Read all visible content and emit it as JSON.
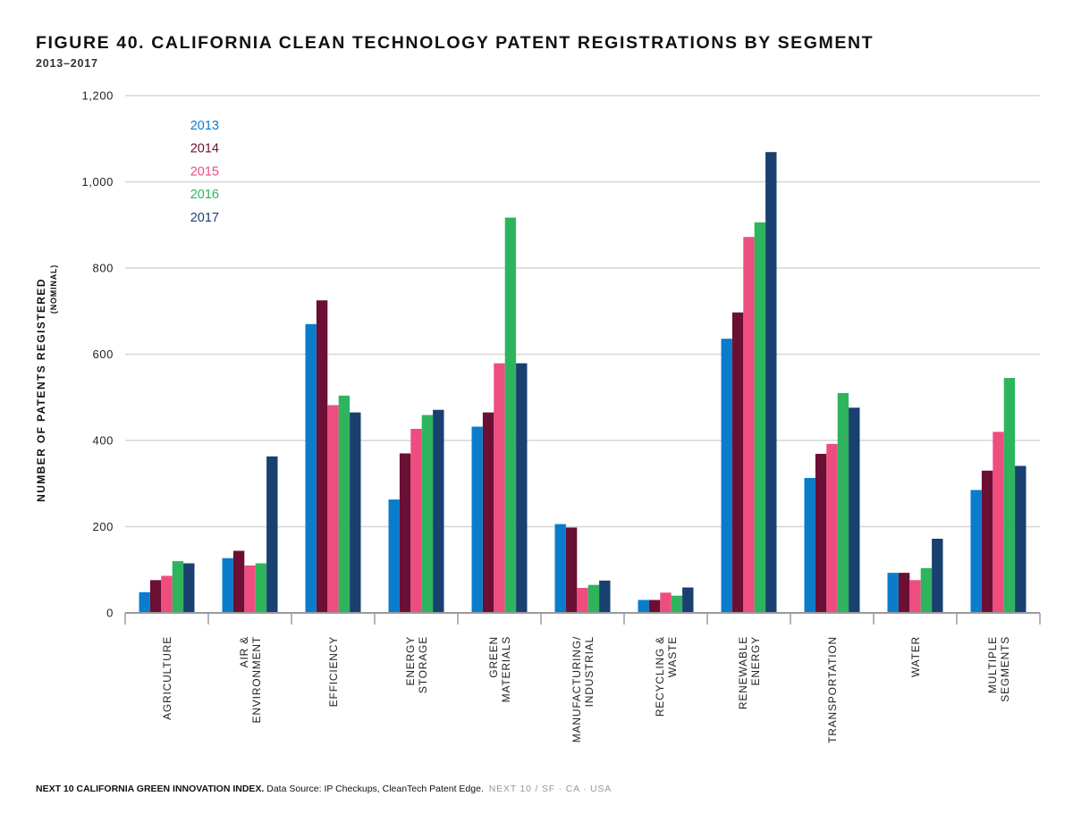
{
  "header": {
    "title": "FIGURE 40. CALIFORNIA CLEAN TECHNOLOGY PATENT REGISTRATIONS BY SEGMENT",
    "subtitle": "2013–2017"
  },
  "footer": {
    "brand": "NEXT 10 CALIFORNIA GREEN INNOVATION INDEX.",
    "source": "Data Source: IP Checkups, CleanTech Patent Edge.",
    "org": "NEXT 10  /  SF · CA · USA"
  },
  "chart_data": {
    "type": "bar",
    "title": "FIGURE 40. CALIFORNIA CLEAN TECHNOLOGY PATENT REGISTRATIONS BY SEGMENT",
    "subtitle": "2013–2017",
    "ylabel": "NUMBER OF PATENTS REGISTERED",
    "ylabel_sub": "(NOMINAL)",
    "xlabel": "",
    "ylim": [
      0,
      1200
    ],
    "yticks": [
      0,
      200,
      400,
      600,
      800,
      1000,
      1200
    ],
    "ytick_labels": [
      "0",
      "200",
      "400",
      "600",
      "800",
      "1,000",
      "1,200"
    ],
    "grid": true,
    "legend_position": "top-left",
    "categories": [
      [
        "AGRICULTURE"
      ],
      [
        "AIR &",
        "ENVIRONMENT"
      ],
      [
        "EFFICIENCY"
      ],
      [
        "ENERGY",
        "STORAGE"
      ],
      [
        "GREEN",
        "MATERIALS"
      ],
      [
        "MANUFACTURING/",
        "INDUSTRIAL"
      ],
      [
        "RECYCLING &",
        "WASTE"
      ],
      [
        "RENEWABLE",
        "ENERGY"
      ],
      [
        "TRANSPORTATION"
      ],
      [
        "WATER"
      ],
      [
        "MULTIPLE",
        "SEGMENTS"
      ]
    ],
    "series": [
      {
        "name": "2013",
        "color": "#0a7ccc",
        "values": [
          48,
          127,
          670,
          263,
          432,
          206,
          30,
          636,
          313,
          93,
          285
        ]
      },
      {
        "name": "2014",
        "color": "#6b0f34",
        "values": [
          76,
          144,
          725,
          370,
          465,
          198,
          30,
          697,
          369,
          93,
          330
        ]
      },
      {
        "name": "2015",
        "color": "#ee4d80",
        "values": [
          86,
          110,
          482,
          427,
          579,
          58,
          47,
          872,
          392,
          76,
          420
        ]
      },
      {
        "name": "2016",
        "color": "#2eb45d",
        "values": [
          120,
          115,
          504,
          459,
          917,
          65,
          40,
          906,
          510,
          104,
          545
        ]
      },
      {
        "name": "2017",
        "color": "#19406f",
        "values": [
          115,
          363,
          465,
          471,
          579,
          75,
          59,
          1069,
          476,
          172,
          341
        ]
      }
    ]
  }
}
